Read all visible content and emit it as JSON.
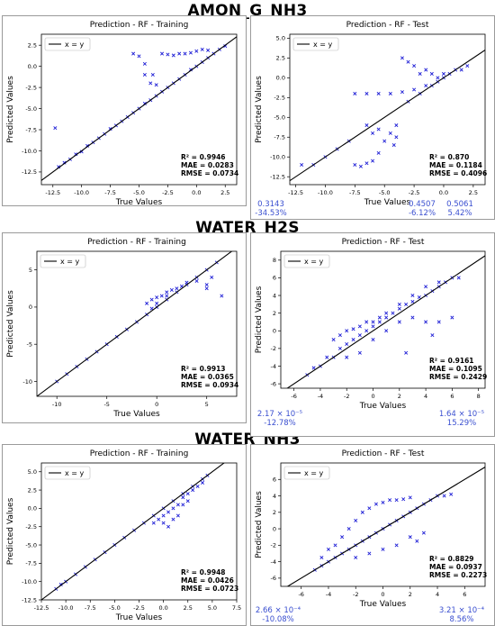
{
  "groups": [
    {
      "title": "AMON_G_NH3"
    },
    {
      "title": "WATER_H2S"
    },
    {
      "title": "WATER_NH3"
    }
  ],
  "chart_data": [
    {
      "type": "scatter",
      "group": "AMON_G_NH3",
      "title": "Prediction - RF - Training",
      "xlabel": "True Values",
      "ylabel": "Predicted Values",
      "xlim": [
        -13.5,
        3.5
      ],
      "ylim": [
        -14,
        3.8
      ],
      "xticks": [
        -12.5,
        -10.0,
        -7.5,
        -5.0,
        -2.5,
        0.0,
        2.5
      ],
      "xticklabels": [
        "-12.5",
        "-10.0",
        "-7.5",
        "-5.0",
        "-2.5",
        "0.0",
        "2.5"
      ],
      "yticks": [
        2.5,
        0.0,
        -2.5,
        -5.0,
        -7.5,
        -10.0,
        -12.5
      ],
      "yticklabels": [
        "2.5",
        "0.0",
        "-2.5",
        "-5.0",
        "-7.5",
        "-10.0",
        "-12.5"
      ],
      "legend": {
        "label": "x = y",
        "position": "top-left"
      },
      "metrics": [
        "R² = 0.9946",
        "MAE = 0.0283",
        "RMSE = 0.0734"
      ],
      "annotations": [],
      "points": [
        [
          -12.0,
          -11.9
        ],
        [
          -11.5,
          -11.4
        ],
        [
          -11.0,
          -11.0
        ],
        [
          -10.5,
          -10.4
        ],
        [
          -10.0,
          -10.1
        ],
        [
          -9.5,
          -9.4
        ],
        [
          -9.0,
          -9.0
        ],
        [
          -8.5,
          -8.5
        ],
        [
          -8.0,
          -8.0
        ],
        [
          -7.5,
          -7.4
        ],
        [
          -7.0,
          -7.0
        ],
        [
          -6.5,
          -6.5
        ],
        [
          -6.0,
          -6.0
        ],
        [
          -5.5,
          -5.5
        ],
        [
          -5.0,
          -5.0
        ],
        [
          -4.5,
          -4.4
        ],
        [
          -4.0,
          -4.0
        ],
        [
          -3.5,
          -3.5
        ],
        [
          -3.0,
          -3.0
        ],
        [
          -2.5,
          -2.5
        ],
        [
          -2.0,
          -2.0
        ],
        [
          -1.5,
          -1.5
        ],
        [
          -1.0,
          -1.0
        ],
        [
          -0.5,
          -0.4
        ],
        [
          0.0,
          0.0
        ],
        [
          0.5,
          0.5
        ],
        [
          1.0,
          1.0
        ],
        [
          1.5,
          1.5
        ],
        [
          2.0,
          2.0
        ],
        [
          2.5,
          2.4
        ],
        [
          -12.3,
          -7.3
        ],
        [
          -5.5,
          1.5
        ],
        [
          -5.0,
          1.2
        ],
        [
          -4.5,
          0.3
        ],
        [
          -4.5,
          -1.0
        ],
        [
          -4.0,
          -2.0
        ],
        [
          -3.8,
          -1.0
        ],
        [
          -3.5,
          -2.2
        ],
        [
          -3.0,
          1.5
        ],
        [
          -2.5,
          1.4
        ],
        [
          -2.0,
          1.3
        ],
        [
          -1.5,
          1.5
        ],
        [
          -1.0,
          1.5
        ],
        [
          -0.5,
          1.6
        ],
        [
          0.0,
          1.8
        ],
        [
          0.5,
          2.0
        ],
        [
          1.0,
          1.9
        ]
      ]
    },
    {
      "type": "scatter",
      "group": "AMON_G_NH3",
      "title": "Prediction - RF - Test",
      "xlabel": "True Values",
      "ylabel": "Predicted Values",
      "xlim": [
        -13,
        3.5
      ],
      "ylim": [
        -13.5,
        5.5
      ],
      "xticks": [
        -12.5,
        -10.0,
        -7.5,
        -5.0,
        -2.5,
        0.0,
        2.5
      ],
      "xticklabels": [
        "-12.5",
        "-10.0",
        "-7.5",
        "-5.0",
        "-2.5",
        "0.0",
        "2.5"
      ],
      "yticks": [
        5.0,
        2.5,
        0.0,
        -2.5,
        -5.0,
        -7.5,
        -10.0,
        -12.5
      ],
      "yticklabels": [
        "5.0",
        "2.5",
        "0.0",
        "-2.5",
        "-5.0",
        "-7.5",
        "-10.0",
        "-12.5"
      ],
      "legend": {
        "label": "x = y",
        "position": "top-left"
      },
      "metrics": [
        "R² = 0.870",
        "MAE = 0.1184",
        "RMSE = 0.4096"
      ],
      "annotations": [
        {
          "lines": [
            "0.3143",
            "-34.53%"
          ]
        },
        {
          "lines": [
            "0.4507",
            "-6.12%"
          ]
        },
        {
          "lines": [
            "0.5061",
            "5.42%"
          ]
        }
      ],
      "points": [
        [
          -11.0,
          -11.0
        ],
        [
          -10.0,
          -10.0
        ],
        [
          -9.0,
          -9.0
        ],
        [
          -8.0,
          -8.0
        ],
        [
          -7.5,
          -11.0
        ],
        [
          -7.0,
          -11.2
        ],
        [
          -6.5,
          -10.8
        ],
        [
          -6.0,
          -10.5
        ],
        [
          -5.5,
          -9.5
        ],
        [
          -5.0,
          -8.0
        ],
        [
          -7.5,
          -2.0
        ],
        [
          -6.5,
          -2.0
        ],
        [
          -5.5,
          -2.0
        ],
        [
          -4.5,
          -2.0
        ],
        [
          -3.5,
          -1.8
        ],
        [
          -2.5,
          -1.5
        ],
        [
          -1.5,
          -1.0
        ],
        [
          -0.5,
          -0.5
        ],
        [
          0.5,
          0.5
        ],
        [
          1.5,
          1.0
        ],
        [
          2.0,
          1.5
        ],
        [
          -3.0,
          -3.0
        ],
        [
          -2.0,
          -2.0
        ],
        [
          -1.0,
          -1.0
        ],
        [
          0.0,
          0.0
        ],
        [
          1.0,
          1.0
        ],
        [
          -3.5,
          2.5
        ],
        [
          -3.0,
          2.0
        ],
        [
          -2.5,
          1.5
        ],
        [
          -2.0,
          0.5
        ],
        [
          -1.5,
          1.0
        ],
        [
          -1.0,
          0.5
        ],
        [
          -0.5,
          0.0
        ],
        [
          0.0,
          0.5
        ],
        [
          -6.5,
          -6.0
        ],
        [
          -6.0,
          -7.0
        ],
        [
          -5.5,
          -6.5
        ],
        [
          -4.5,
          -7.0
        ],
        [
          -4.0,
          -7.5
        ],
        [
          -4.2,
          -8.5
        ],
        [
          -4.0,
          -6.0
        ],
        [
          -12.0,
          -11.0
        ]
      ]
    },
    {
      "type": "scatter",
      "group": "WATER_H2S",
      "title": "Prediction - RF - Training",
      "xlabel": "True Values",
      "ylabel": "Predicted Values",
      "xlim": [
        -12,
        8
      ],
      "ylim": [
        -12,
        7.5
      ],
      "xticks": [
        -10,
        -5,
        0,
        5
      ],
      "xticklabels": [
        "-10",
        "-5",
        "0",
        "5"
      ],
      "yticks": [
        5,
        0,
        -5,
        -10
      ],
      "yticklabels": [
        "5",
        "0",
        "-5",
        "-10"
      ],
      "legend": {
        "label": "x = y",
        "position": "top-left"
      },
      "metrics": [
        "R² = 0.9913",
        "MAE = 0.0365",
        "RMSE = 0.0934"
      ],
      "annotations": [],
      "points": [
        [
          -10.0,
          -10.0
        ],
        [
          -9.0,
          -9.0
        ],
        [
          -8.0,
          -8.0
        ],
        [
          -7.0,
          -7.0
        ],
        [
          -6.0,
          -6.0
        ],
        [
          -5.0,
          -5.0
        ],
        [
          -4.0,
          -4.0
        ],
        [
          -3.0,
          -3.0
        ],
        [
          -2.0,
          -2.0
        ],
        [
          -1.0,
          -1.0
        ],
        [
          0.0,
          0.0
        ],
        [
          1.0,
          1.0
        ],
        [
          2.0,
          2.0
        ],
        [
          3.0,
          3.0
        ],
        [
          4.0,
          4.0
        ],
        [
          5.0,
          5.0
        ],
        [
          6.0,
          6.0
        ],
        [
          -1.0,
          0.5
        ],
        [
          0.0,
          1.3
        ],
        [
          -0.5,
          1.0
        ],
        [
          0.5,
          1.5
        ],
        [
          1.0,
          2.0
        ],
        [
          1.5,
          2.3
        ],
        [
          2.0,
          2.5
        ],
        [
          2.5,
          2.8
        ],
        [
          3.0,
          3.3
        ],
        [
          4.0,
          3.5
        ],
        [
          5.0,
          2.5
        ],
        [
          5.0,
          3.0
        ],
        [
          6.5,
          1.5
        ],
        [
          5.5,
          4.0
        ],
        [
          -0.5,
          -0.2
        ],
        [
          0.0,
          0.5
        ],
        [
          1.0,
          1.5
        ]
      ]
    },
    {
      "type": "scatter",
      "group": "WATER_H2S",
      "title": "Prediction - RF - Test",
      "xlabel": "True Values",
      "ylabel": "Predicted Values",
      "xlim": [
        -7,
        8.5
      ],
      "ylim": [
        -6.5,
        9
      ],
      "xticks": [
        -6,
        -4,
        -2,
        0,
        2,
        4,
        6,
        8
      ],
      "xticklabels": [
        "-6",
        "-4",
        "-2",
        "0",
        "2",
        "4",
        "6",
        "8"
      ],
      "yticks": [
        8,
        6,
        4,
        2,
        0,
        -2,
        -4,
        -6
      ],
      "yticklabels": [
        "8",
        "6",
        "4",
        "2",
        "0",
        "-2",
        "-4",
        "-6"
      ],
      "legend": {
        "label": "x = y",
        "position": "top-left"
      },
      "metrics": [
        "R² = 0.9161",
        "MAE = 0.1095",
        "RMSE = 0.2429"
      ],
      "annotations": [
        {
          "lines": [
            "2.17 × 10⁻⁵",
            "-12.78%"
          ]
        },
        {
          "lines": [
            "1.64 × 10⁻⁵",
            "15.29%"
          ]
        }
      ],
      "points": [
        [
          -5.0,
          -5.0
        ],
        [
          -4.5,
          -4.2
        ],
        [
          -4.0,
          -4.0
        ],
        [
          -3.5,
          -3.0
        ],
        [
          -3.0,
          -3.0
        ],
        [
          -2.5,
          -2.0
        ],
        [
          -2.0,
          -1.5
        ],
        [
          -1.5,
          -1.0
        ],
        [
          -1.0,
          -0.5
        ],
        [
          -0.5,
          0.0
        ],
        [
          0.0,
          0.5
        ],
        [
          0.5,
          1.0
        ],
        [
          1.0,
          1.5
        ],
        [
          1.5,
          2.0
        ],
        [
          2.0,
          2.5
        ],
        [
          2.5,
          3.0
        ],
        [
          3.0,
          3.3
        ],
        [
          3.5,
          3.8
        ],
        [
          4.0,
          4.0
        ],
        [
          4.5,
          4.5
        ],
        [
          5.0,
          5.0
        ],
        [
          5.5,
          5.5
        ],
        [
          6.0,
          6.0
        ],
        [
          6.5,
          6.0
        ],
        [
          -3.0,
          -1.0
        ],
        [
          -2.5,
          -0.5
        ],
        [
          -2.0,
          0.0
        ],
        [
          -1.5,
          0.2
        ],
        [
          -1.0,
          0.5
        ],
        [
          -0.5,
          1.0
        ],
        [
          0.0,
          1.0
        ],
        [
          0.5,
          1.5
        ],
        [
          1.0,
          2.0
        ],
        [
          2.0,
          3.0
        ],
        [
          3.0,
          4.0
        ],
        [
          4.0,
          5.0
        ],
        [
          5.0,
          5.5
        ],
        [
          -2.0,
          -3.0
        ],
        [
          -1.0,
          -2.5
        ],
        [
          0.0,
          -1.0
        ],
        [
          1.0,
          0.0
        ],
        [
          2.0,
          1.0
        ],
        [
          3.0,
          1.5
        ],
        [
          4.0,
          1.0
        ],
        [
          5.0,
          1.0
        ],
        [
          6.0,
          1.5
        ],
        [
          4.5,
          -0.5
        ],
        [
          2.5,
          -2.5
        ]
      ]
    },
    {
      "type": "scatter",
      "group": "WATER_NH3",
      "title": "Prediction - RF - Training",
      "xlabel": "True Values",
      "ylabel": "Predicted Values",
      "xlim": [
        -12.5,
        7.5
      ],
      "ylim": [
        -12.5,
        6.2
      ],
      "xticks": [
        -12.5,
        -10.0,
        -7.5,
        -5.0,
        -2.5,
        0.0,
        2.5,
        5.0,
        7.5
      ],
      "xticklabels": [
        "-12.5",
        "-10.0",
        "-7.5",
        "-5.0",
        "-2.5",
        "0.0",
        "2.5",
        "5.0",
        "7.5"
      ],
      "yticks": [
        5.0,
        2.5,
        0.0,
        -2.5,
        -5.0,
        -7.5,
        -10.0,
        -12.5
      ],
      "yticklabels": [
        "5.0",
        "2.5",
        "0.0",
        "-2.5",
        "-5.0",
        "-7.5",
        "-10.0",
        "-12.5"
      ],
      "legend": {
        "label": "x = y",
        "position": "top-left"
      },
      "metrics": [
        "R² = 0.9948",
        "MAE = 0.0426",
        "RMSE = 0.0723"
      ],
      "annotations": [],
      "points": [
        [
          -11.0,
          -11.0
        ],
        [
          -10.5,
          -10.4
        ],
        [
          -10.0,
          -10.0
        ],
        [
          -9.0,
          -9.0
        ],
        [
          -8.0,
          -8.0
        ],
        [
          -7.0,
          -7.0
        ],
        [
          -6.0,
          -6.0
        ],
        [
          -5.0,
          -5.0
        ],
        [
          -4.0,
          -4.0
        ],
        [
          -3.0,
          -3.0
        ],
        [
          -2.0,
          -2.0
        ],
        [
          -1.0,
          -1.0
        ],
        [
          0.0,
          0.0
        ],
        [
          1.0,
          1.0
        ],
        [
          2.0,
          2.0
        ],
        [
          3.0,
          3.0
        ],
        [
          4.0,
          4.0
        ],
        [
          4.5,
          4.5
        ],
        [
          0.0,
          -1.0
        ],
        [
          0.5,
          -0.5
        ],
        [
          1.0,
          0.0
        ],
        [
          1.5,
          0.5
        ],
        [
          2.0,
          1.5
        ],
        [
          2.5,
          2.0
        ],
        [
          3.0,
          2.5
        ],
        [
          3.5,
          3.0
        ],
        [
          4.0,
          3.5
        ],
        [
          -0.5,
          -1.5
        ],
        [
          -1.0,
          -2.0
        ],
        [
          0.0,
          -2.0
        ],
        [
          0.5,
          -2.5
        ],
        [
          1.0,
          -1.5
        ],
        [
          1.5,
          -1.0
        ],
        [
          2.0,
          0.5
        ],
        [
          2.5,
          1.0
        ]
      ]
    },
    {
      "type": "scatter",
      "group": "WATER_NH3",
      "title": "Prediction - RF - Test",
      "xlabel": "True Values",
      "ylabel": "Predicted Values",
      "xlim": [
        -7.5,
        7.5
      ],
      "ylim": [
        -7,
        8
      ],
      "xticks": [
        -6,
        -4,
        -2,
        0,
        2,
        4,
        6
      ],
      "xticklabels": [
        "-6",
        "-4",
        "-2",
        "0",
        "2",
        "4",
        "6"
      ],
      "yticks": [
        6,
        4,
        2,
        0,
        -2,
        -4,
        -6
      ],
      "yticklabels": [
        "6",
        "4",
        "2",
        "0",
        "-2",
        "-4",
        "-6"
      ],
      "legend": {
        "label": "x = y",
        "position": "top-left"
      },
      "metrics": [
        "R² = 0.8829",
        "MAE = 0.0937",
        "RMSE = 0.2273"
      ],
      "annotations": [
        {
          "lines": [
            "2.66 × 10⁻⁴",
            "-10.08%"
          ]
        },
        {
          "lines": [
            "3.21 × 10⁻⁴",
            "8.56%"
          ]
        }
      ],
      "points": [
        [
          -5.0,
          -5.0
        ],
        [
          -4.5,
          -4.5
        ],
        [
          -4.0,
          -4.0
        ],
        [
          -3.5,
          -3.5
        ],
        [
          -3.0,
          -3.0
        ],
        [
          -2.5,
          -2.5
        ],
        [
          -2.0,
          -2.0
        ],
        [
          -1.5,
          -1.5
        ],
        [
          -1.0,
          -1.0
        ],
        [
          -0.5,
          -0.5
        ],
        [
          0.0,
          0.0
        ],
        [
          0.5,
          0.5
        ],
        [
          1.0,
          1.0
        ],
        [
          1.5,
          1.5
        ],
        [
          2.0,
          2.0
        ],
        [
          2.5,
          2.5
        ],
        [
          3.0,
          3.0
        ],
        [
          3.5,
          3.5
        ],
        [
          4.0,
          4.0
        ],
        [
          4.5,
          4.0
        ],
        [
          5.0,
          4.2
        ],
        [
          -3.0,
          -1.0
        ],
        [
          -2.5,
          0.0
        ],
        [
          -2.0,
          1.0
        ],
        [
          -1.5,
          2.0
        ],
        [
          -1.0,
          2.5
        ],
        [
          -0.5,
          3.0
        ],
        [
          0.0,
          3.2
        ],
        [
          0.5,
          3.5
        ],
        [
          1.0,
          3.5
        ],
        [
          1.5,
          3.6
        ],
        [
          2.0,
          3.8
        ],
        [
          -2.0,
          -3.5
        ],
        [
          -1.0,
          -3.0
        ],
        [
          0.0,
          -2.5
        ],
        [
          1.0,
          -2.0
        ],
        [
          2.0,
          -1.0
        ],
        [
          2.5,
          -1.5
        ],
        [
          3.0,
          -0.5
        ],
        [
          -4.5,
          -3.5
        ],
        [
          -4.0,
          -2.5
        ],
        [
          -3.5,
          -2.0
        ]
      ]
    }
  ]
}
